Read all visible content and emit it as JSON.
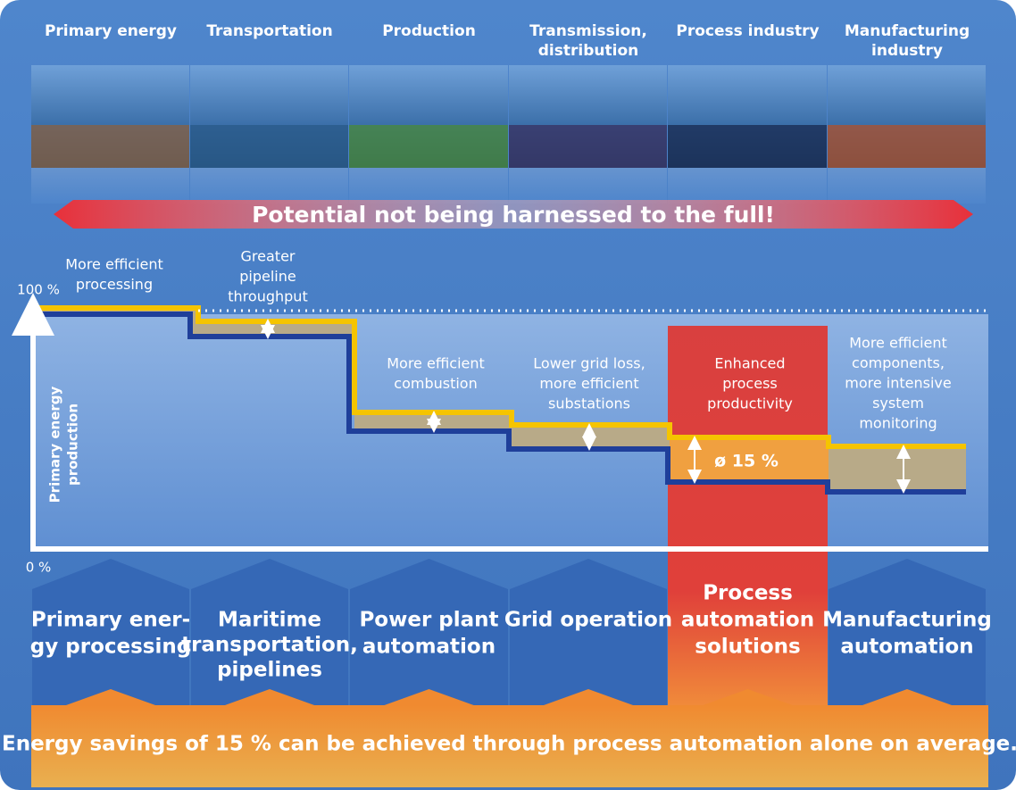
{
  "header": {
    "sectors": [
      [
        "Primary energy"
      ],
      [
        "Transportation"
      ],
      [
        "Production"
      ],
      [
        "Transmission,",
        "distribution"
      ],
      [
        "Process industry"
      ],
      [
        "Manufacturing",
        "industry"
      ]
    ],
    "banner": "Potential not being harnessed to the full!"
  },
  "diagram": {
    "y_top_label": "100 %",
    "y_bottom_label": "0 %",
    "y_axis_label": [
      "Primary energy",
      "production"
    ],
    "step_labels": [
      [
        "More efficient",
        "processing"
      ],
      [
        "Greater",
        "pipeline",
        "throughput"
      ],
      [
        "More efficient",
        "combustion"
      ],
      [
        "Lower grid loss,",
        "more efficient",
        "substations"
      ],
      [
        "Enhanced",
        "process",
        "productivity"
      ],
      [
        "More efficient",
        "components,",
        "more intensive",
        "system",
        "monitoring"
      ]
    ],
    "callout": "ø 15 %"
  },
  "solutions": [
    [
      "Primary ener-",
      "gy processing"
    ],
    [
      "Maritime",
      "transportation,",
      "pipelines"
    ],
    [
      "Power plant",
      "automation"
    ],
    [
      "Grid operation"
    ],
    [
      "Process",
      "automation",
      "solutions"
    ],
    [
      "Manufacturing",
      "automation"
    ]
  ],
  "footer": "Energy savings of 15 % can be achieved through process automation alone on average."
}
